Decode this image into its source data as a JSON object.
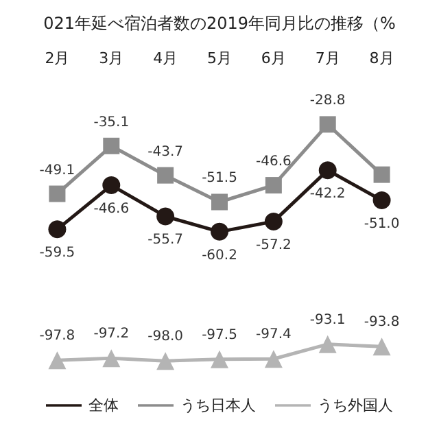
{
  "chart_data": {
    "type": "line",
    "title": "021年延べ宿泊者数の2019年同月比の推移（%",
    "categories": [
      "2月",
      "3月",
      "4月",
      "5月",
      "6月",
      "7月",
      "8月"
    ],
    "tick_labels": "x",
    "grid": false,
    "legend": "bottom",
    "series": [
      {
        "name": "全体",
        "color": "#231815",
        "marker": "circle",
        "values": [
          -59.5,
          -46.6,
          -55.7,
          -60.2,
          -57.2,
          -42.2,
          -51.0
        ],
        "value_labels": [
          "-59.5",
          "-46.6",
          "-55.7",
          "-60.2",
          "-57.2",
          "-42.2",
          "-51.0"
        ]
      },
      {
        "name": "うち日本人",
        "color": "#8c8c8c",
        "marker": "square",
        "values": [
          -49.1,
          -35.1,
          -43.7,
          -51.5,
          -46.6,
          -28.8,
          -43.5
        ],
        "value_labels": [
          "-49.1",
          "-35.1",
          "-43.7",
          "-51.5",
          "-46.6",
          "-28.8",
          null
        ]
      },
      {
        "name": "うち外国人",
        "color": "#b4b4b4",
        "marker": "triangle",
        "values": [
          -97.8,
          -97.2,
          -98.0,
          -97.5,
          -97.4,
          -93.1,
          -93.8
        ],
        "value_labels": [
          "-97.8",
          "-97.2",
          "-98.0",
          "-97.5",
          "-97.4",
          "-93.1",
          "-93.8"
        ]
      }
    ]
  }
}
